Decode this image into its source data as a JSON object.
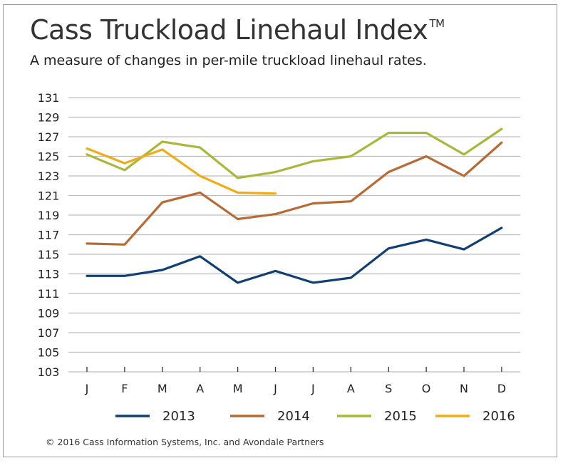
{
  "chart_data": {
    "type": "line",
    "title": "Cass Truckload Linehaul Index",
    "title_mark": "TM",
    "subtitle": "A measure of changes in per-mile truckload linehaul rates.",
    "categories": [
      "J",
      "F",
      "M",
      "A",
      "M",
      "J",
      "J",
      "A",
      "S",
      "O",
      "N",
      "D"
    ],
    "ylim": [
      103,
      131
    ],
    "yticks": [
      "103",
      "105",
      "107",
      "109",
      "111",
      "113",
      "115",
      "117",
      "119",
      "121",
      "123",
      "125",
      "127",
      "129",
      "131"
    ],
    "grid": true,
    "legend_position": "bottom",
    "series": [
      {
        "name": "2013",
        "color": "#103f74",
        "values": [
          112.8,
          112.8,
          113.4,
          114.8,
          112.1,
          113.3,
          112.1,
          112.6,
          115.6,
          116.5,
          115.5,
          117.7
        ]
      },
      {
        "name": "2014",
        "color": "#b86a35",
        "values": [
          116.1,
          116.0,
          120.3,
          121.3,
          118.6,
          119.1,
          120.2,
          120.4,
          123.4,
          125.0,
          123.0,
          126.4
        ]
      },
      {
        "name": "2015",
        "color": "#a9b83a",
        "values": [
          125.2,
          123.6,
          126.5,
          125.9,
          122.8,
          123.4,
          124.5,
          125.0,
          127.4,
          127.4,
          125.2,
          127.8
        ]
      },
      {
        "name": "2016",
        "color": "#f0ac17",
        "values": [
          125.8,
          124.3,
          125.7,
          123.0,
          121.3,
          121.2,
          null,
          null,
          null,
          null,
          null,
          null
        ]
      }
    ],
    "footer": "© 2016 Cass Information Systems, Inc. and Avondale Partners"
  }
}
